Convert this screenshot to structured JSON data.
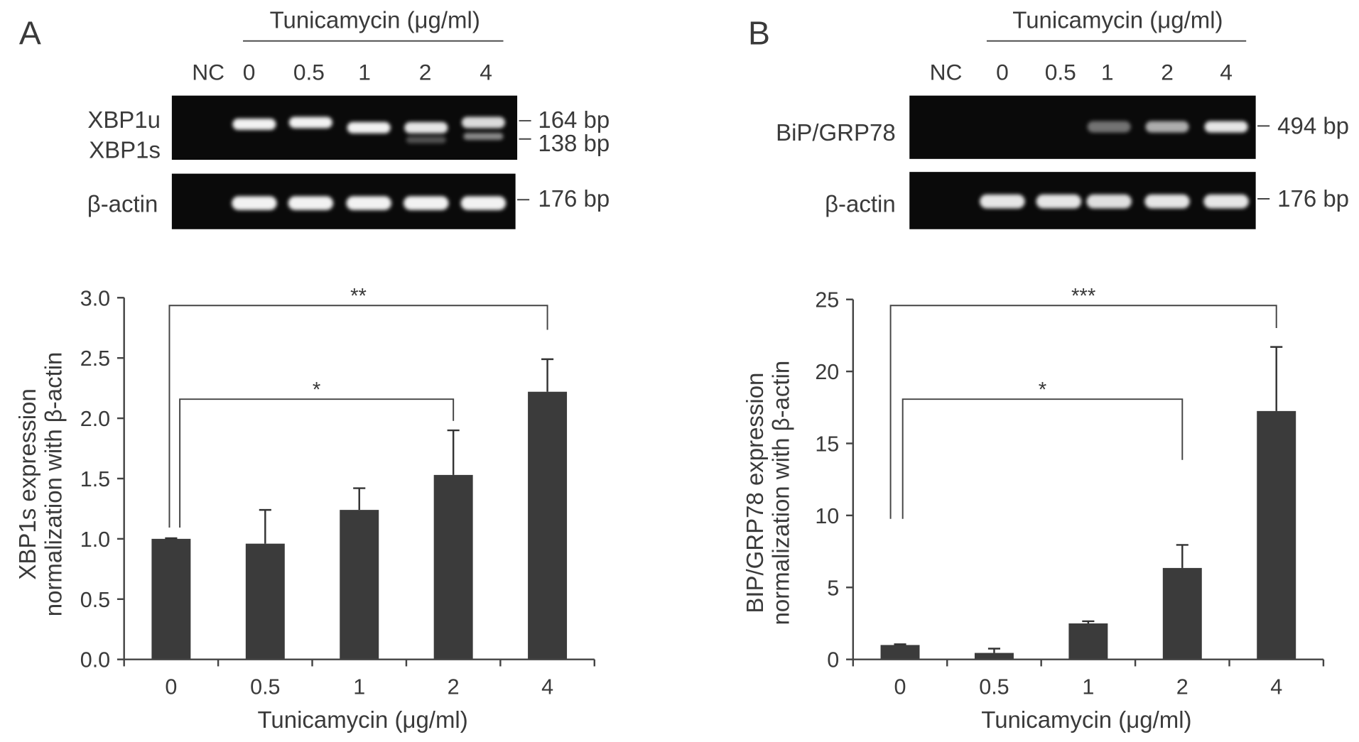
{
  "panels": [
    {
      "label": "A",
      "gel": {
        "treatment_label": "Tunicamycin (μg/ml)",
        "lanes": [
          "NC",
          "0",
          "0.5",
          "1",
          "2",
          "4"
        ],
        "blots": [
          {
            "row_labels": [
              "XBP1u",
              "XBP1s"
            ],
            "markers": [
              "164 bp",
              "138 bp"
            ],
            "bands": [
              [
                0,
                1,
                1,
                1,
                0.95,
                0.9
              ],
              [
                0,
                0,
                0,
                0,
                0.3,
                0.55
              ]
            ]
          },
          {
            "row_labels": [
              "β-actin"
            ],
            "markers": [
              "176 bp"
            ],
            "bands": [
              [
                0,
                1,
                1,
                1,
                1,
                1
              ]
            ]
          }
        ]
      }
    },
    {
      "label": "B",
      "gel": {
        "treatment_label": "Tunicamycin (μg/ml)",
        "lanes": [
          "NC",
          "0",
          "0.5",
          "1",
          "2",
          "4"
        ],
        "blots": [
          {
            "row_labels": [
              "BiP/GRP78"
            ],
            "markers": [
              "494 bp"
            ],
            "bands": [
              [
                0,
                0,
                0,
                0.45,
                0.7,
                0.95
              ]
            ]
          },
          {
            "row_labels": [
              "β-actin"
            ],
            "markers": [
              "176 bp"
            ],
            "bands": [
              [
                0,
                0.95,
                0.95,
                0.92,
                0.95,
                0.95
              ]
            ]
          }
        ]
      }
    }
  ],
  "colors": {
    "gel_background": "#0a0a0a",
    "band": "#f2f2f2"
  },
  "chart_data": [
    {
      "type": "bar",
      "categories": [
        "0",
        "0.5",
        "1",
        "2",
        "4"
      ],
      "values": [
        1.0,
        0.96,
        1.24,
        1.53,
        2.22
      ],
      "errors": [
        0.005,
        0.28,
        0.18,
        0.37,
        0.27
      ],
      "xlabel": "Tunicamycin (μg/ml)",
      "ylabel": [
        "XBP1s expression",
        "normalization with β-actin"
      ],
      "ylim": [
        0,
        3.0
      ],
      "yticks": [
        "0.0",
        "0.5",
        "1.0",
        "1.5",
        "2.0",
        "2.5",
        "3.0"
      ],
      "significance": [
        {
          "from": "0",
          "to": "2",
          "label": "*"
        },
        {
          "from": "0",
          "to": "4",
          "label": "**"
        }
      ],
      "grid": false,
      "bar_color": "#3b3b3b"
    },
    {
      "type": "bar",
      "categories": [
        "0",
        "0.5",
        "1",
        "2",
        "4"
      ],
      "values": [
        1.0,
        0.45,
        2.5,
        6.35,
        17.25
      ],
      "errors": [
        0.05,
        0.3,
        0.15,
        1.6,
        4.45
      ],
      "xlabel": "Tunicamycin (μg/ml)",
      "ylabel": [
        "BIP/GRP78 expression",
        "normalization with β-actin"
      ],
      "ylim": [
        0,
        25
      ],
      "yticks": [
        "0",
        "5",
        "10",
        "15",
        "20",
        "25"
      ],
      "significance": [
        {
          "from": "0",
          "to": "2",
          "label": "*"
        },
        {
          "from": "0",
          "to": "4",
          "label": "***"
        }
      ],
      "grid": false,
      "bar_color": "#3b3b3b"
    }
  ]
}
